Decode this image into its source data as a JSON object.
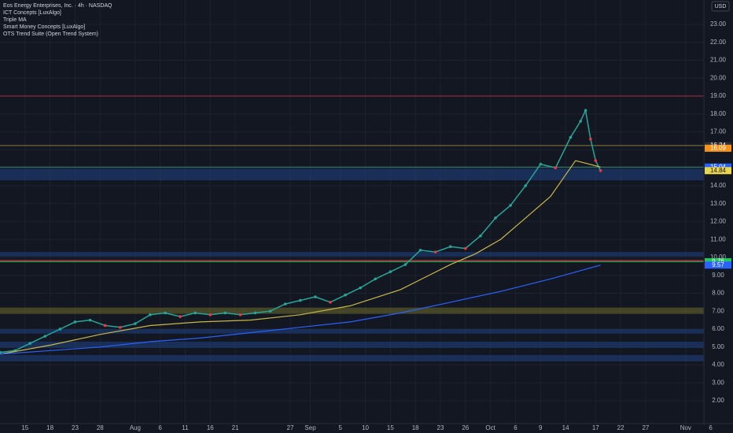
{
  "header": {
    "title": "Eos Energy Enterprises, Inc. · 4h · NASDAQ",
    "indicators": [
      "ICT Concepts [LuxAlgo]",
      "Triple MA",
      "Smart Money Concepts [LuxAlgo]",
      "OTS Trend Suite (Open Trend System)"
    ],
    "currency": "USD"
  },
  "chart_data": {
    "type": "line",
    "xlim": [
      0,
      143
    ],
    "xticks": [
      {
        "value": 5,
        "label": "15"
      },
      {
        "value": 10,
        "label": "18"
      },
      {
        "value": 15,
        "label": "23"
      },
      {
        "value": 20,
        "label": "28"
      },
      {
        "value": 27,
        "label": "Aug"
      },
      {
        "value": 32,
        "label": "6"
      },
      {
        "value": 37,
        "label": "11"
      },
      {
        "value": 42,
        "label": "16"
      },
      {
        "value": 47,
        "label": "21"
      },
      {
        "value": 58,
        "label": "27"
      },
      {
        "value": 62,
        "label": "Sep"
      },
      {
        "value": 68,
        "label": "5"
      },
      {
        "value": 73,
        "label": "10"
      },
      {
        "value": 78,
        "label": "15"
      },
      {
        "value": 83,
        "label": "18"
      },
      {
        "value": 88,
        "label": "23"
      },
      {
        "value": 93,
        "label": "26"
      },
      {
        "value": 98,
        "label": "Oct"
      },
      {
        "value": 103,
        "label": "6"
      },
      {
        "value": 108,
        "label": "9"
      },
      {
        "value": 113,
        "label": "14"
      },
      {
        "value": 119,
        "label": "17"
      },
      {
        "value": 124,
        "label": "22"
      },
      {
        "value": 129,
        "label": "27"
      },
      {
        "value": 137,
        "label": "Nov"
      },
      {
        "value": 142,
        "label": "6"
      }
    ],
    "ylim": [
      0.73,
      24.36
    ],
    "yticks": [
      {
        "value": 2,
        "label": "2.00"
      },
      {
        "value": 3,
        "label": "3.00"
      },
      {
        "value": 4,
        "label": "4.00"
      },
      {
        "value": 5,
        "label": "5.00"
      },
      {
        "value": 6,
        "label": "6.00"
      },
      {
        "value": 7,
        "label": "7.00"
      },
      {
        "value": 8,
        "label": "8.00"
      },
      {
        "value": 9,
        "label": "9.00"
      },
      {
        "value": 10,
        "label": "10.00"
      },
      {
        "value": 11,
        "label": "11.00"
      },
      {
        "value": 12,
        "label": "12.00"
      },
      {
        "value": 13,
        "label": "13.00"
      },
      {
        "value": 14,
        "label": "14.00"
      },
      {
        "value": 15,
        "label": "15.00"
      },
      {
        "value": 16,
        "label": "16.00"
      },
      {
        "value": 17,
        "label": "17.00"
      },
      {
        "value": 18,
        "label": "18.00"
      },
      {
        "value": 19,
        "label": "19.00"
      },
      {
        "value": 20,
        "label": "20.00"
      },
      {
        "value": 21,
        "label": "21.00"
      },
      {
        "value": 22,
        "label": "22.00"
      },
      {
        "value": 23,
        "label": "23.00"
      }
    ],
    "grid": true,
    "series": [
      {
        "color": "#26a69a",
        "x": [
          0,
          3,
          6,
          9,
          12,
          15,
          18,
          21,
          24,
          27,
          30,
          33,
          36,
          39,
          42,
          45,
          48,
          51,
          54,
          57,
          60,
          63,
          66,
          69,
          72,
          75,
          78,
          81,
          84,
          87,
          90,
          93,
          96,
          99,
          102,
          105,
          108,
          111,
          114,
          116,
          117,
          118,
          119,
          120
        ],
        "values": [
          4.7,
          4.8,
          5.2,
          5.6,
          6.0,
          6.4,
          6.5,
          6.2,
          6.1,
          6.3,
          6.8,
          6.9,
          6.7,
          6.9,
          6.8,
          6.9,
          6.8,
          6.9,
          7.0,
          7.4,
          7.6,
          7.8,
          7.5,
          7.9,
          8.3,
          8.8,
          9.2,
          9.6,
          10.4,
          10.3,
          10.6,
          10.5,
          11.2,
          12.2,
          12.9,
          14.0,
          15.2,
          15.0,
          16.7,
          17.6,
          18.2,
          16.6,
          15.4,
          14.84
        ]
      },
      {
        "color": "#c9b74a",
        "x": [
          0,
          10,
          20,
          30,
          40,
          50,
          60,
          70,
          80,
          85,
          90,
          95,
          100,
          105,
          110,
          115,
          120
        ],
        "values": [
          4.6,
          5.1,
          5.7,
          6.2,
          6.4,
          6.5,
          6.8,
          7.3,
          8.2,
          8.9,
          9.6,
          10.2,
          11.0,
          12.2,
          13.4,
          15.4,
          15.04
        ]
      },
      {
        "color": "#2962ff",
        "x": [
          0,
          10,
          20,
          30,
          40,
          50,
          60,
          70,
          80,
          90,
          100,
          110,
          120
        ],
        "values": [
          4.6,
          4.8,
          5.0,
          5.3,
          5.5,
          5.8,
          6.1,
          6.4,
          6.9,
          7.5,
          8.1,
          8.8,
          9.57
        ]
      }
    ],
    "levels": [
      {
        "value": 16.24,
        "color": "#8a7d3a"
      },
      {
        "value": 15.04,
        "color": "#2e8b7a"
      },
      {
        "value": 9.83,
        "color": "#f23645"
      },
      {
        "value": 9.76,
        "color": "#22c55e"
      },
      {
        "value": 19.0,
        "color": "#b2283b"
      }
    ],
    "zones": [
      {
        "low": 14.3,
        "high": 14.95,
        "color": "#1e3a6e"
      },
      {
        "low": 10.05,
        "high": 10.3,
        "color": "#1e3a6e"
      },
      {
        "low": 6.85,
        "high": 7.2,
        "color": "#5a5a2a"
      },
      {
        "low": 5.75,
        "high": 6.0,
        "color": "#1e3a6e"
      },
      {
        "low": 4.95,
        "high": 5.3,
        "color": "#1e3a6e"
      },
      {
        "low": 4.2,
        "high": 4.55,
        "color": "#1e3a6e"
      }
    ],
    "price_labels": [
      {
        "value": 16.24,
        "color": "#2a2e39"
      },
      {
        "value": 16.09,
        "color": "#f7931a"
      },
      {
        "value": 15.04,
        "color": "#2962ff"
      },
      {
        "value": 14.84,
        "color": "#e8d44d"
      },
      {
        "value": 9.76,
        "color": "#22c55e"
      },
      {
        "value": 9.57,
        "color": "#2962ff"
      }
    ]
  }
}
